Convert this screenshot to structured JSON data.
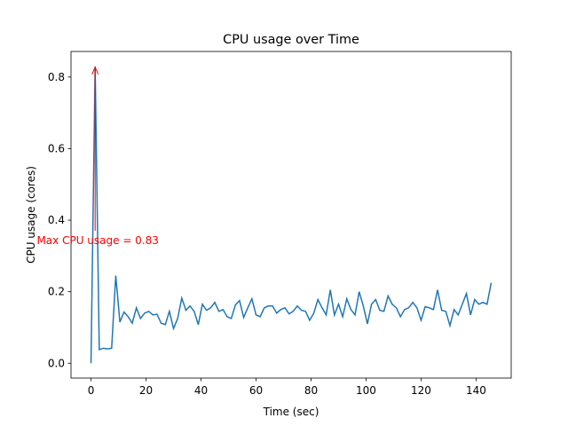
{
  "chart_data": {
    "type": "line",
    "title": "CPU usage over Time",
    "x_label": "Time (sec)",
    "y_label": "CPU usage (cores)",
    "x": [
      0,
      1.5,
      3,
      4.5,
      6,
      7.5,
      9,
      10.5,
      12,
      13.5,
      15,
      16.5,
      18,
      19.5,
      21,
      22.5,
      24,
      25.5,
      27,
      28.5,
      30,
      31.5,
      33,
      34.5,
      36,
      37.5,
      39,
      40.5,
      42,
      43.5,
      45,
      46.5,
      48,
      49.5,
      51,
      52.5,
      54,
      55.5,
      57,
      58.5,
      60,
      61.5,
      63,
      64.5,
      66,
      67.5,
      69,
      70.5,
      72,
      73.5,
      75,
      76.5,
      78,
      79.5,
      81,
      82.5,
      84,
      85.5,
      87,
      88.5,
      90,
      91.5,
      93,
      94.5,
      96,
      97.5,
      99,
      100.5,
      102,
      103.5,
      105,
      106.5,
      108,
      109.5,
      111,
      112.5,
      114,
      115.5,
      117,
      118.5,
      120,
      121.5,
      123,
      124.5,
      126,
      127.5,
      129,
      130.5,
      132,
      133.5,
      135,
      136.5,
      138,
      139.5,
      141,
      142.5,
      144,
      145.5
    ],
    "series": [
      {
        "name": "CPU usage",
        "color": "#1f77b4",
        "values": [
          0,
          0.83,
          0.038,
          0.042,
          0.04,
          0.042,
          0.245,
          0.115,
          0.143,
          0.13,
          0.112,
          0.155,
          0.125,
          0.14,
          0.145,
          0.135,
          0.137,
          0.112,
          0.108,
          0.145,
          0.097,
          0.125,
          0.182,
          0.148,
          0.16,
          0.145,
          0.108,
          0.165,
          0.148,
          0.155,
          0.17,
          0.145,
          0.15,
          0.13,
          0.125,
          0.163,
          0.175,
          0.128,
          0.155,
          0.18,
          0.135,
          0.13,
          0.155,
          0.16,
          0.16,
          0.14,
          0.15,
          0.155,
          0.138,
          0.145,
          0.16,
          0.148,
          0.145,
          0.12,
          0.14,
          0.178,
          0.155,
          0.135,
          0.205,
          0.135,
          0.165,
          0.13,
          0.18,
          0.15,
          0.135,
          0.2,
          0.16,
          0.11,
          0.165,
          0.178,
          0.148,
          0.145,
          0.188,
          0.165,
          0.155,
          0.13,
          0.15,
          0.155,
          0.17,
          0.155,
          0.12,
          0.158,
          0.155,
          0.15,
          0.205,
          0.148,
          0.145,
          0.105,
          0.15,
          0.135,
          0.165,
          0.195,
          0.135,
          0.178,
          0.165,
          0.17,
          0.165,
          0.225
        ]
      }
    ],
    "xlim": [
      -7.275,
      152.775
    ],
    "xticks": [
      0,
      20,
      40,
      60,
      80,
      100,
      120,
      140
    ],
    "ylim": [
      -0.0415,
      0.8715
    ],
    "yticks": [
      {
        "value": 0,
        "label": "0.0"
      },
      0.2,
      0.4,
      0.6,
      0.8
    ],
    "annotation": {
      "text": "Max CPU usage = 0.83",
      "color": "red"
    }
  }
}
